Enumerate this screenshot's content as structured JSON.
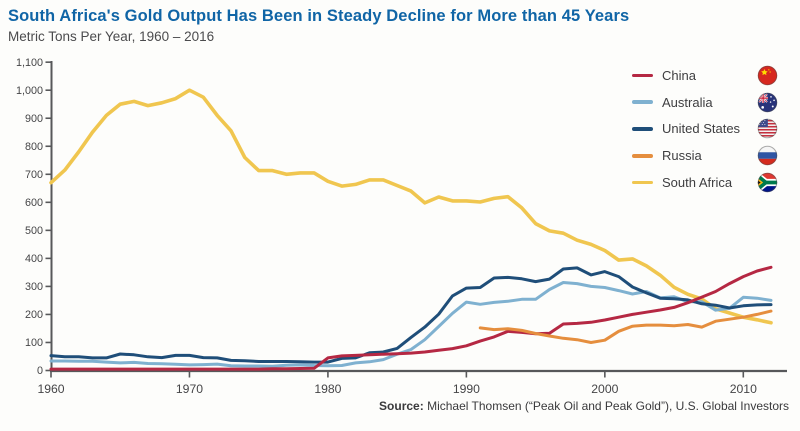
{
  "header": {
    "title": "South Africa's Gold Output Has Been in Steady Decline for More than 45 Years",
    "subtitle": "Metric Tons Per Year, 1960 – 2016"
  },
  "source": {
    "label": "Source:",
    "text": " Michael Thomsen (“Peak Oil and Peak Gold”), U.S. Global Investors"
  },
  "colors": {
    "title_blue": "#1065a6",
    "axis_gray": "#57585a",
    "tick_text": "#454547",
    "background": "#fdfdfb"
  },
  "chart_data": {
    "type": "line",
    "title": "South Africa's Gold Output Has Been in Steady Decline for More than 45 Years",
    "subtitle": "Metric Tons Per Year, 1960 – 2016",
    "xlabel": "",
    "ylabel": "Metric Tons Per Year",
    "ylim": [
      0,
      1100
    ],
    "grid": false,
    "legend_position": "top-right",
    "x": [
      1960,
      1961,
      1962,
      1963,
      1964,
      1965,
      1966,
      1967,
      1968,
      1969,
      1970,
      1971,
      1972,
      1973,
      1974,
      1975,
      1976,
      1977,
      1978,
      1979,
      1980,
      1981,
      1982,
      1983,
      1984,
      1985,
      1986,
      1987,
      1988,
      1989,
      1990,
      1991,
      1992,
      1993,
      1994,
      1995,
      1996,
      1997,
      1998,
      1999,
      2000,
      2001,
      2002,
      2003,
      2004,
      2005,
      2006,
      2007,
      2008,
      2009,
      2010,
      2011,
      2012
    ],
    "xticks": [
      1960,
      1970,
      1980,
      1990,
      2000,
      2010
    ],
    "ytick_labels": [
      "0",
      "100",
      "200",
      "300",
      "400",
      "500",
      "600",
      "700",
      "800",
      "900",
      "1,000",
      "1,100"
    ],
    "series": [
      {
        "name": "China",
        "color": "#b52843",
        "flag_icon": "china-flag-icon",
        "values": [
          5,
          5,
          5,
          5,
          5,
          5,
          5,
          5,
          5,
          5,
          5,
          5,
          5,
          5,
          5,
          5,
          6,
          6,
          7,
          8,
          45,
          52,
          54,
          56,
          58,
          60,
          62,
          66,
          72,
          78,
          88,
          105,
          120,
          140,
          136,
          131,
          133,
          166,
          168,
          172,
          180,
          190,
          200,
          208,
          216,
          225,
          242,
          262,
          282,
          310,
          335,
          355,
          368
        ]
      },
      {
        "name": "Australia",
        "color": "#7fb1d0",
        "flag_icon": "australia-flag-icon",
        "values": [
          34,
          34,
          33,
          33,
          30,
          27,
          29,
          25,
          24,
          22,
          20,
          21,
          23,
          17,
          16,
          16,
          15,
          19,
          20,
          18,
          17,
          18,
          27,
          31,
          39,
          58,
          75,
          110,
          157,
          204,
          244,
          236,
          243,
          247,
          254,
          254,
          289,
          314,
          310,
          300,
          296,
          285,
          273,
          282,
          259,
          263,
          245,
          245,
          215,
          222,
          261,
          258,
          250
        ]
      },
      {
        "name": "United States",
        "color": "#1f4e79",
        "flag_icon": "united-states-flag-icon",
        "values": [
          53,
          49,
          49,
          45,
          45,
          59,
          56,
          49,
          46,
          54,
          54,
          46,
          45,
          36,
          35,
          32,
          32,
          32,
          31,
          30,
          30,
          43,
          45,
          63,
          66,
          79,
          118,
          155,
          201,
          266,
          294,
          296,
          330,
          332,
          327,
          317,
          326,
          362,
          366,
          341,
          353,
          335,
          298,
          277,
          258,
          256,
          252,
          238,
          233,
          223,
          231,
          234,
          235
        ]
      },
      {
        "name": "Russia",
        "color": "#e58e3e",
        "flag_icon": "russia-flag-icon",
        "values": [
          null,
          null,
          null,
          null,
          null,
          null,
          null,
          null,
          null,
          null,
          null,
          null,
          null,
          null,
          null,
          null,
          null,
          null,
          null,
          null,
          null,
          null,
          null,
          null,
          null,
          null,
          null,
          null,
          null,
          null,
          null,
          152,
          146,
          149,
          143,
          132,
          123,
          115,
          110,
          100,
          108,
          140,
          158,
          162,
          162,
          160,
          164,
          155,
          176,
          183,
          190,
          200,
          212
        ]
      },
      {
        "name": "South Africa",
        "color": "#f0c64f",
        "flag_icon": "south-africa-flag-icon",
        "values": [
          670,
          715,
          780,
          850,
          910,
          950,
          960,
          945,
          955,
          970,
          1000,
          975,
          910,
          855,
          760,
          713,
          713,
          700,
          705,
          705,
          675,
          658,
          664,
          680,
          680,
          660,
          640,
          598,
          619,
          605,
          605,
          601,
          614,
          620,
          580,
          524,
          498,
          490,
          465,
          450,
          428,
          394,
          398,
          373,
          340,
          297,
          272,
          255,
          220,
          205,
          190,
          181,
          170
        ]
      }
    ]
  }
}
